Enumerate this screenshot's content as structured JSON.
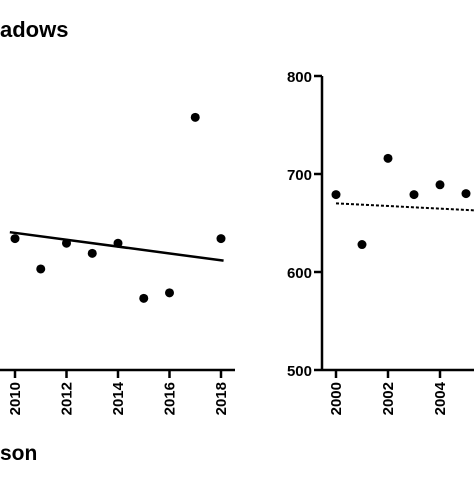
{
  "panel_title": "adows",
  "x_axis_title": "son",
  "chart_data": [
    {
      "type": "scatter",
      "title": "adows",
      "xlabel": "son",
      "ylabel": "",
      "x_ticks": [
        "2010",
        "2012",
        "2014",
        "2016",
        "2018"
      ],
      "y_ticks": [],
      "xlim": [
        2009.8,
        2018.2
      ],
      "ylim": [
        540,
        860
      ],
      "grid": false,
      "series": [
        {
          "marker": "circle",
          "points": [
            {
              "x": 2010,
              "y": 683
            },
            {
              "x": 2011,
              "y": 650
            },
            {
              "x": 2012,
              "y": 678
            },
            {
              "x": 2013,
              "y": 667
            },
            {
              "x": 2014,
              "y": 678
            },
            {
              "x": 2015,
              "y": 618
            },
            {
              "x": 2016,
              "y": 624
            },
            {
              "x": 2017,
              "y": 815
            },
            {
              "x": 2018,
              "y": 683
            }
          ]
        }
      ],
      "trend_line": {
        "style": "solid",
        "points": [
          {
            "x": 2009.8,
            "y": 690
          },
          {
            "x": 2018.1,
            "y": 659
          }
        ]
      }
    },
    {
      "type": "scatter",
      "title": "",
      "xlabel": "",
      "ylabel": "",
      "x_ticks": [
        "2000",
        "2002",
        "2004"
      ],
      "y_ticks": [
        "500",
        "600",
        "700",
        "800"
      ],
      "xlim": [
        1999.35,
        2006
      ],
      "ylim": [
        500,
        800
      ],
      "grid": false,
      "series": [
        {
          "marker": "circle",
          "points": [
            {
              "x": 2000,
              "y": 679
            },
            {
              "x": 2001,
              "y": 628
            },
            {
              "x": 2002,
              "y": 716
            },
            {
              "x": 2003,
              "y": 679
            },
            {
              "x": 2004,
              "y": 689
            },
            {
              "x": 2005,
              "y": 680
            }
          ]
        }
      ],
      "trend_line": {
        "style": "dashed",
        "points": [
          {
            "x": 2000,
            "y": 670
          },
          {
            "x": 2006,
            "y": 662
          }
        ]
      }
    }
  ]
}
